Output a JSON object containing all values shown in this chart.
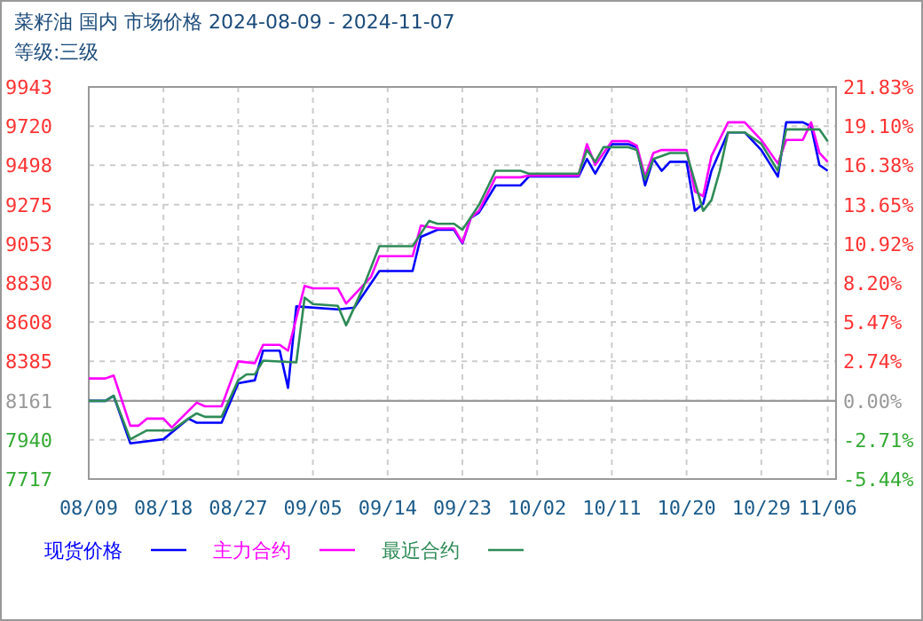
{
  "chart_data": {
    "type": "line",
    "title": "菜籽油 国内 市场价格 2024-08-09 - 2024-11-07",
    "subtitle": "等级:三级",
    "xlim": [
      "2024-08-09",
      "2024-11-07"
    ],
    "xticks": [
      {
        "value": "2024-08-09",
        "label": "08/09"
      },
      {
        "value": "2024-08-18",
        "label": "08/18"
      },
      {
        "value": "2024-08-27",
        "label": "08/27"
      },
      {
        "value": "2024-09-05",
        "label": "09/05"
      },
      {
        "value": "2024-09-14",
        "label": "09/14"
      },
      {
        "value": "2024-09-23",
        "label": "09/23"
      },
      {
        "value": "2024-10-02",
        "label": "10/02"
      },
      {
        "value": "2024-10-11",
        "label": "10/11"
      },
      {
        "value": "2024-10-20",
        "label": "10/20"
      },
      {
        "value": "2024-10-29",
        "label": "10/29"
      },
      {
        "value": "2024-11-06",
        "label": "11/06"
      }
    ],
    "ylim": [
      7717,
      9943
    ],
    "yticks": [
      7717,
      7940,
      8161,
      8385,
      8608,
      8830,
      9053,
      9275,
      9498,
      9720,
      9943
    ],
    "y2lim": [
      -5.44,
      21.83
    ],
    "y2ticks": [
      {
        "value": -5.44,
        "label": "-5.44%"
      },
      {
        "value": -2.71,
        "label": "-2.71%"
      },
      {
        "value": 0,
        "label": "0.00%"
      },
      {
        "value": 2.74,
        "label": "2.74%"
      },
      {
        "value": 5.47,
        "label": "5.47%"
      },
      {
        "value": 8.2,
        "label": "8.20%"
      },
      {
        "value": 10.92,
        "label": "10.92%"
      },
      {
        "value": 13.65,
        "label": "13.65%"
      },
      {
        "value": 16.38,
        "label": "16.38%"
      },
      {
        "value": 19.1,
        "label": "19.10%"
      },
      {
        "value": 21.83,
        "label": "21.83%"
      }
    ],
    "grid": true,
    "legend": "bottom",
    "marker": "none",
    "line_style": "solid",
    "ref_lines": [
      {
        "axis": "y",
        "value": 8161,
        "color": "#999999"
      }
    ],
    "series": [
      {
        "name": "现货价格",
        "color": "#0000ff",
        "x": [
          "2024-08-09",
          "2024-08-11",
          "2024-08-12",
          "2024-08-14",
          "2024-08-18",
          "2024-08-21",
          "2024-08-22",
          "2024-08-25",
          "2024-08-27",
          "2024-08-29",
          "2024-08-30",
          "2024-09-01",
          "2024-09-02",
          "2024-09-03",
          "2024-09-08",
          "2024-09-10",
          "2024-09-13",
          "2024-09-17",
          "2024-09-18",
          "2024-09-20",
          "2024-09-22",
          "2024-09-23",
          "2024-09-24",
          "2024-09-25",
          "2024-09-27",
          "2024-09-30",
          "2024-10-01",
          "2024-10-07",
          "2024-10-08",
          "2024-10-09",
          "2024-10-10",
          "2024-10-11",
          "2024-10-13",
          "2024-10-14",
          "2024-10-15",
          "2024-10-16",
          "2024-10-17",
          "2024-10-18",
          "2024-10-20",
          "2024-10-21",
          "2024-10-22",
          "2024-10-23",
          "2024-10-25",
          "2024-10-27",
          "2024-10-29",
          "2024-10-31",
          "2024-11-01",
          "2024-11-03",
          "2024-11-04",
          "2024-11-05",
          "2024-11-06"
        ],
        "values": [
          8161,
          8161,
          8190,
          7920,
          7943,
          8060,
          8037,
          8037,
          8261,
          8278,
          8446,
          8446,
          8235,
          8697,
          8680,
          8690,
          8898,
          8898,
          9092,
          9132,
          9132,
          9055,
          9199,
          9230,
          9384,
          9384,
          9434,
          9434,
          9534,
          9451,
          9534,
          9618,
          9618,
          9600,
          9384,
          9534,
          9467,
          9518,
          9518,
          9240,
          9280,
          9467,
          9685,
          9685,
          9585,
          9434,
          9742,
          9742,
          9720,
          9500,
          9467
        ]
      },
      {
        "name": "主力合约",
        "color": "#ff00ff",
        "x": [
          "2024-08-09",
          "2024-08-11",
          "2024-08-12",
          "2024-08-14",
          "2024-08-15",
          "2024-08-16",
          "2024-08-18",
          "2024-08-19",
          "2024-08-22",
          "2024-08-23",
          "2024-08-25",
          "2024-08-27",
          "2024-08-29",
          "2024-08-30",
          "2024-09-01",
          "2024-09-02",
          "2024-09-04",
          "2024-09-05",
          "2024-09-08",
          "2024-09-09",
          "2024-09-12",
          "2024-09-13",
          "2024-09-17",
          "2024-09-18",
          "2024-09-20",
          "2024-09-22",
          "2024-09-23",
          "2024-09-24",
          "2024-09-25",
          "2024-09-27",
          "2024-09-30",
          "2024-10-01",
          "2024-10-07",
          "2024-10-08",
          "2024-10-09",
          "2024-10-11",
          "2024-10-13",
          "2024-10-14",
          "2024-10-15",
          "2024-10-16",
          "2024-10-17",
          "2024-10-20",
          "2024-10-21",
          "2024-10-22",
          "2024-10-23",
          "2024-10-25",
          "2024-10-27",
          "2024-10-29",
          "2024-10-31",
          "2024-11-01",
          "2024-11-03",
          "2024-11-04",
          "2024-11-05",
          "2024-11-06"
        ],
        "values": [
          8288,
          8288,
          8305,
          8020,
          8020,
          8060,
          8060,
          8010,
          8151,
          8130,
          8130,
          8385,
          8375,
          8479,
          8479,
          8446,
          8814,
          8800,
          8800,
          8714,
          8865,
          8982,
          8982,
          9156,
          9140,
          9140,
          9060,
          9199,
          9240,
          9430,
          9430,
          9440,
          9440,
          9618,
          9500,
          9635,
          9635,
          9610,
          9434,
          9568,
          9585,
          9585,
          9350,
          9323,
          9551,
          9742,
          9742,
          9642,
          9508,
          9642,
          9642,
          9742,
          9568,
          9518
        ]
      },
      {
        "name": "最近合约",
        "color": "#2e8b57",
        "x": [
          "2024-08-09",
          "2024-08-11",
          "2024-08-12",
          "2024-08-14",
          "2024-08-16",
          "2024-08-19",
          "2024-08-21",
          "2024-08-22",
          "2024-08-23",
          "2024-08-25",
          "2024-08-27",
          "2024-08-28",
          "2024-08-29",
          "2024-08-30",
          "2024-09-03",
          "2024-09-04",
          "2024-09-05",
          "2024-09-08",
          "2024-09-09",
          "2024-09-11",
          "2024-09-13",
          "2024-09-17",
          "2024-09-19",
          "2024-09-20",
          "2024-09-22",
          "2024-09-23",
          "2024-09-25",
          "2024-09-27",
          "2024-09-30",
          "2024-10-01",
          "2024-10-07",
          "2024-10-08",
          "2024-10-09",
          "2024-10-10",
          "2024-10-13",
          "2024-10-14",
          "2024-10-15",
          "2024-10-16",
          "2024-10-18",
          "2024-10-20",
          "2024-10-22",
          "2024-10-23",
          "2024-10-24",
          "2024-10-25",
          "2024-10-27",
          "2024-10-29",
          "2024-10-31",
          "2024-11-01",
          "2024-11-05",
          "2024-11-06"
        ],
        "values": [
          8161,
          8161,
          8190,
          7943,
          7993,
          7993,
          8060,
          8090,
          8070,
          8070,
          8278,
          8311,
          8311,
          8389,
          8379,
          8747,
          8710,
          8700,
          8590,
          8798,
          9039,
          9039,
          9183,
          9166,
          9166,
          9132,
          9273,
          9467,
          9467,
          9451,
          9451,
          9585,
          9518,
          9601,
          9601,
          9585,
          9417,
          9534,
          9568,
          9568,
          9240,
          9300,
          9467,
          9685,
          9685,
          9620,
          9467,
          9702,
          9702,
          9635
        ]
      }
    ]
  }
}
